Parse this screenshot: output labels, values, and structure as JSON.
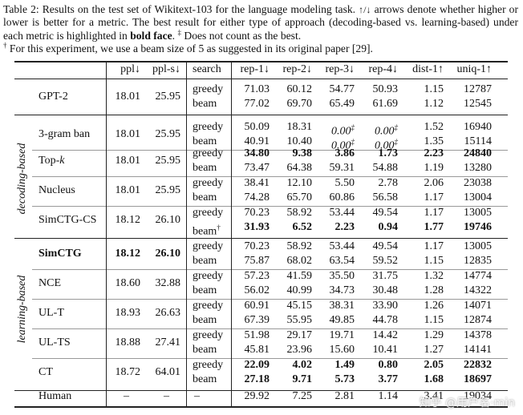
{
  "caption": {
    "part1": "Table 2: Results on the test set of Wikitext-103 for the language modeling task.",
    "arrows": "↑/↓",
    "part2": "arrows denote whether higher or lower is better for a metric. The best result for either type of approach (decoding-based vs. learning-based) under each metric is highlighted in",
    "bold": "bold face",
    "part3": ".",
    "dagger2": "‡",
    "part4": "Does not count as the best.",
    "dagger1": "†",
    "part5": "For this experiment, we use a beam size of 5 as suggested in its original paper [29]."
  },
  "columns": [
    "ppl↓",
    "ppl-s↓",
    "search",
    "rep-1↓",
    "rep-2↓",
    "rep-3↓",
    "rep-4↓",
    "dist-1↑",
    "uniq-1↑"
  ],
  "groups": {
    "decoding": "decoding-based",
    "learning": "learning-based"
  },
  "rows": [
    {
      "model": "GPT-2",
      "ppl": "18.01",
      "ppls": "25.95",
      "sub": [
        {
          "search": "greedy",
          "r1": "71.03",
          "r2": "60.12",
          "r3": "54.77",
          "r4": "50.93",
          "d1": "1.15",
          "u1": "12787"
        },
        {
          "search": "beam",
          "r1": "77.02",
          "r2": "69.70",
          "r3": "65.49",
          "r4": "61.69",
          "d1": "1.12",
          "u1": "12545"
        }
      ]
    },
    {
      "model": "3-gram ban",
      "ppl": "18.01",
      "ppls": "25.95",
      "sub": [
        {
          "search": "greedy",
          "r1": "50.09",
          "r2": "18.31",
          "r3": "0.00",
          "r3sup": "‡",
          "r4": "0.00",
          "r4sup": "‡",
          "d1": "1.52",
          "u1": "16940"
        },
        {
          "search": "beam",
          "r1": "40.91",
          "r2": "10.40",
          "r3": "0.00",
          "r3sup": "‡",
          "r4": "0.00",
          "r4sup": "‡",
          "d1": "1.35",
          "u1": "15114"
        }
      ]
    },
    {
      "model": "Top-",
      "modelItalic": "k",
      "ppl": "18.01",
      "ppls": "25.95",
      "sub": [
        {
          "search": "greedy",
          "r1": "34.80",
          "r2": "9.38",
          "r3": "3.86",
          "r4": "1.73",
          "d1": "2.23",
          "u1": "24840"
        },
        {
          "search": "beam",
          "r1": "73.47",
          "r2": "64.38",
          "r3": "59.31",
          "r4": "54.88",
          "d1": "1.19",
          "u1": "13280"
        }
      ]
    },
    {
      "model": "Nucleus",
      "ppl": "18.01",
      "ppls": "25.95",
      "sub": [
        {
          "search": "greedy",
          "r1": "38.41",
          "r2": "12.10",
          "r3": "5.50",
          "r4": "2.78",
          "d1": "2.06",
          "u1": "23038"
        },
        {
          "search": "beam",
          "r1": "74.28",
          "r2": "65.70",
          "r3": "60.86",
          "r4": "56.58",
          "d1": "1.17",
          "u1": "13004"
        }
      ]
    },
    {
      "model": "SimCTG-CS",
      "ppl": "18.12",
      "ppls": "26.10",
      "sub": [
        {
          "search": "greedy",
          "r1": "70.23",
          "r2": "58.92",
          "r3": "53.44",
          "r4": "49.54",
          "d1": "1.17",
          "u1": "13005"
        },
        {
          "search": "beam",
          "searchSup": "†",
          "r1": "31.93",
          "r2": "6.52",
          "r3": "2.23",
          "r4": "0.94",
          "d1": "1.77",
          "u1": "19746"
        }
      ]
    },
    {
      "model": "SimCTG",
      "ppl": "18.12",
      "ppls": "26.10",
      "sub": [
        {
          "search": "greedy",
          "r1": "70.23",
          "r2": "58.92",
          "r3": "53.44",
          "r4": "49.54",
          "d1": "1.17",
          "u1": "13005"
        },
        {
          "search": "beam",
          "r1": "75.87",
          "r2": "68.02",
          "r3": "63.54",
          "r4": "59.52",
          "d1": "1.15",
          "u1": "12835"
        }
      ]
    },
    {
      "model": "NCE",
      "ppl": "18.60",
      "ppls": "32.88",
      "sub": [
        {
          "search": "greedy",
          "r1": "57.23",
          "r2": "41.59",
          "r3": "35.50",
          "r4": "31.75",
          "d1": "1.32",
          "u1": "14774"
        },
        {
          "search": "beam",
          "r1": "56.02",
          "r2": "40.99",
          "r3": "34.73",
          "r4": "30.48",
          "d1": "1.28",
          "u1": "14322"
        }
      ]
    },
    {
      "model": "UL-T",
      "ppl": "18.93",
      "ppls": "26.63",
      "sub": [
        {
          "search": "greedy",
          "r1": "60.91",
          "r2": "45.15",
          "r3": "38.31",
          "r4": "33.90",
          "d1": "1.26",
          "u1": "14071"
        },
        {
          "search": "beam",
          "r1": "67.39",
          "r2": "55.95",
          "r3": "49.85",
          "r4": "44.78",
          "d1": "1.15",
          "u1": "12874"
        }
      ]
    },
    {
      "model": "UL-TS",
      "ppl": "18.88",
      "ppls": "27.41",
      "sub": [
        {
          "search": "greedy",
          "r1": "51.98",
          "r2": "29.17",
          "r3": "19.71",
          "r4": "14.42",
          "d1": "1.29",
          "u1": "14378"
        },
        {
          "search": "beam",
          "r1": "45.81",
          "r2": "23.96",
          "r3": "15.60",
          "r4": "10.41",
          "d1": "1.27",
          "u1": "14141"
        }
      ]
    },
    {
      "model": "CT",
      "ppl": "18.72",
      "ppls": "64.01",
      "sub": [
        {
          "search": "greedy",
          "r1": "22.09",
          "r2": "4.02",
          "r3": "1.49",
          "r4": "0.80",
          "d1": "2.05",
          "u1": "22832"
        },
        {
          "search": "beam",
          "r1": "27.18",
          "r2": "9.71",
          "r3": "5.73",
          "r4": "3.77",
          "d1": "1.68",
          "u1": "18697"
        }
      ]
    }
  ],
  "human": {
    "model": "Human",
    "ppl": "–",
    "ppls": "–",
    "search": "–",
    "r1": "29.92",
    "r2": "7.25",
    "r3": "2.81",
    "r4": "1.14",
    "d1": "3.41",
    "u1": "19034"
  },
  "watermark": "知乎 @用户名·min"
}
